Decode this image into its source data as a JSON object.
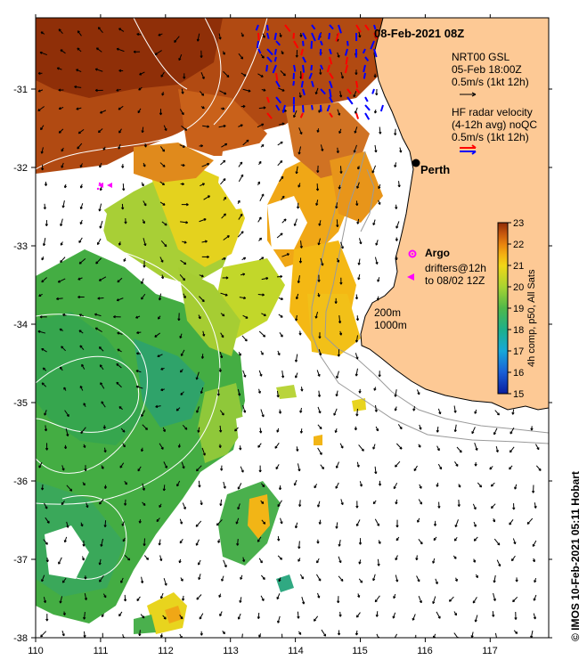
{
  "map": {
    "title": "08-Feb-2021 08Z",
    "footer_credit": "© IMOS 10-Feb-2021 05:11 Hobart",
    "lon_ticks": [
      "110",
      "111",
      "112",
      "113",
      "114",
      "115",
      "116",
      "117"
    ],
    "lat_ticks": [
      "-31",
      "-32",
      "-33",
      "-34",
      "-35",
      "-36",
      "-37",
      "-38"
    ],
    "lon_range": [
      110,
      117.9
    ],
    "lat_range": [
      -30.2,
      -38.0
    ],
    "colors": {
      "land": "#fdc995",
      "cloud": "#ffffff",
      "radar_red": "#ff0000",
      "radar_blue": "#0000ff",
      "argo": "#ff00ff"
    }
  },
  "legend": {
    "gsl_line1": "NRT00 GSL",
    "gsl_line2": "05-Feb 18:00Z",
    "gsl_line3": "0.5m/s (1kt 12h)",
    "hf_line1": "HF radar velocity",
    "hf_line2": "(4-12h avg) noQC",
    "hf_line3": "0.5m/s (1kt 12h)",
    "argo_label": "Argo",
    "drifters_line1": "drifters@12h",
    "drifters_line2": "to 08/02 12Z",
    "isobath_1": "200m",
    "isobath_2": "1000m"
  },
  "places": {
    "perth": {
      "name": "Perth",
      "lon": 115.86,
      "lat": -31.95
    }
  },
  "colorbar": {
    "label": "4h comp, p50, All Sats",
    "min": 15,
    "max": 23,
    "ticks": [
      "15",
      "16",
      "17",
      "18",
      "19",
      "20",
      "21",
      "22",
      "23"
    ]
  }
}
